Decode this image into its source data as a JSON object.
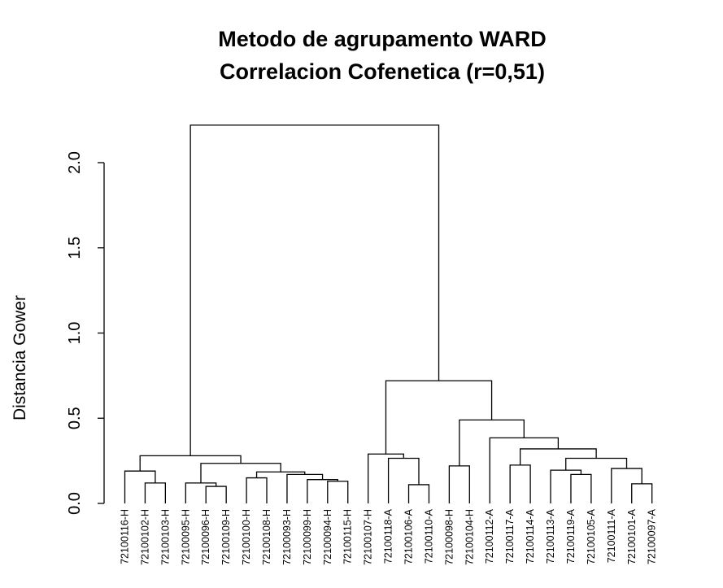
{
  "chart_data": {
    "type": "dendrogram",
    "title": [
      "Metodo de agrupamento WARD",
      "Correlacion Cofenetica (r=0,51)"
    ],
    "ylabel": "Distancia Gower",
    "xlabel": "",
    "ylim": [
      0,
      2.25
    ],
    "yticks": [
      {
        "value": 0.0,
        "label": "0.0"
      },
      {
        "value": 0.5,
        "label": "0.5"
      },
      {
        "value": 1.0,
        "label": "1.0"
      },
      {
        "value": 1.5,
        "label": "1.5"
      },
      {
        "value": 2.0,
        "label": "2.0"
      }
    ],
    "leaves": [
      "72100116-H",
      "72100102-H",
      "72100103-H",
      "72100095-H",
      "72100096-H",
      "72100109-H",
      "72100100-H",
      "72100108-H",
      "72100093-H",
      "72100099-H",
      "72100094-H",
      "72100115-H",
      "72100107-H",
      "72100118-A",
      "72100106-A",
      "72100110-A",
      "72100098-H",
      "72100104-H",
      "72100112-A",
      "72100117-A",
      "72100114-A",
      "72100113-A",
      "72100119-A",
      "72100105-A",
      "72100111-A",
      "72100101-A",
      "72100097-A"
    ],
    "merges": [
      {
        "id": "a",
        "left": "L1",
        "right": "L2",
        "height": 0.12
      },
      {
        "id": "b",
        "left": "L0",
        "right": "a",
        "height": 0.19
      },
      {
        "id": "c",
        "left": "L4",
        "right": "L5",
        "height": 0.1
      },
      {
        "id": "d",
        "left": "L3",
        "right": "c",
        "height": 0.12
      },
      {
        "id": "e",
        "left": "L10",
        "right": "L11",
        "height": 0.13
      },
      {
        "id": "f",
        "left": "L9",
        "right": "e",
        "height": 0.14
      },
      {
        "id": "g",
        "left": "L6",
        "right": "L7",
        "height": 0.15
      },
      {
        "id": "h",
        "left": "L8",
        "right": "f",
        "height": 0.17
      },
      {
        "id": "i",
        "left": "g",
        "right": "h",
        "height": 0.185
      },
      {
        "id": "j",
        "left": "d",
        "right": "i",
        "height": 0.235
      },
      {
        "id": "k",
        "left": "b",
        "right": "j",
        "height": 0.28
      },
      {
        "id": "l",
        "left": "L14",
        "right": "L15",
        "height": 0.11
      },
      {
        "id": "m",
        "left": "L13",
        "right": "l",
        "height": 0.265
      },
      {
        "id": "n",
        "left": "L12",
        "right": "m",
        "height": 0.29
      },
      {
        "id": "o",
        "left": "L16",
        "right": "L17",
        "height": 0.22
      },
      {
        "id": "p",
        "left": "L22",
        "right": "L23",
        "height": 0.17
      },
      {
        "id": "q",
        "left": "L21",
        "right": "p",
        "height": 0.195
      },
      {
        "id": "r",
        "left": "L25",
        "right": "L26",
        "height": 0.115
      },
      {
        "id": "s",
        "left": "L24",
        "right": "r",
        "height": 0.205
      },
      {
        "id": "t",
        "left": "q",
        "right": "s",
        "height": 0.265
      },
      {
        "id": "u",
        "left": "L20",
        "right": "t",
        "height": 0.32
      },
      {
        "id": "v",
        "left": "L19",
        "right": "L20",
        "height": 0.225,
        "skip": true
      },
      {
        "id": "w",
        "left": "L18",
        "right": "x",
        "height": 0.385
      },
      {
        "id": "x",
        "left": "v2",
        "right": "u",
        "height": 0.0,
        "skip": true
      },
      {
        "id": "y",
        "left": "o",
        "right": "w",
        "height": 0.49
      },
      {
        "id": "z",
        "left": "n",
        "right": "y",
        "height": 0.72
      },
      {
        "id": "root",
        "left": "k",
        "right": "z",
        "height": 2.22
      }
    ]
  }
}
